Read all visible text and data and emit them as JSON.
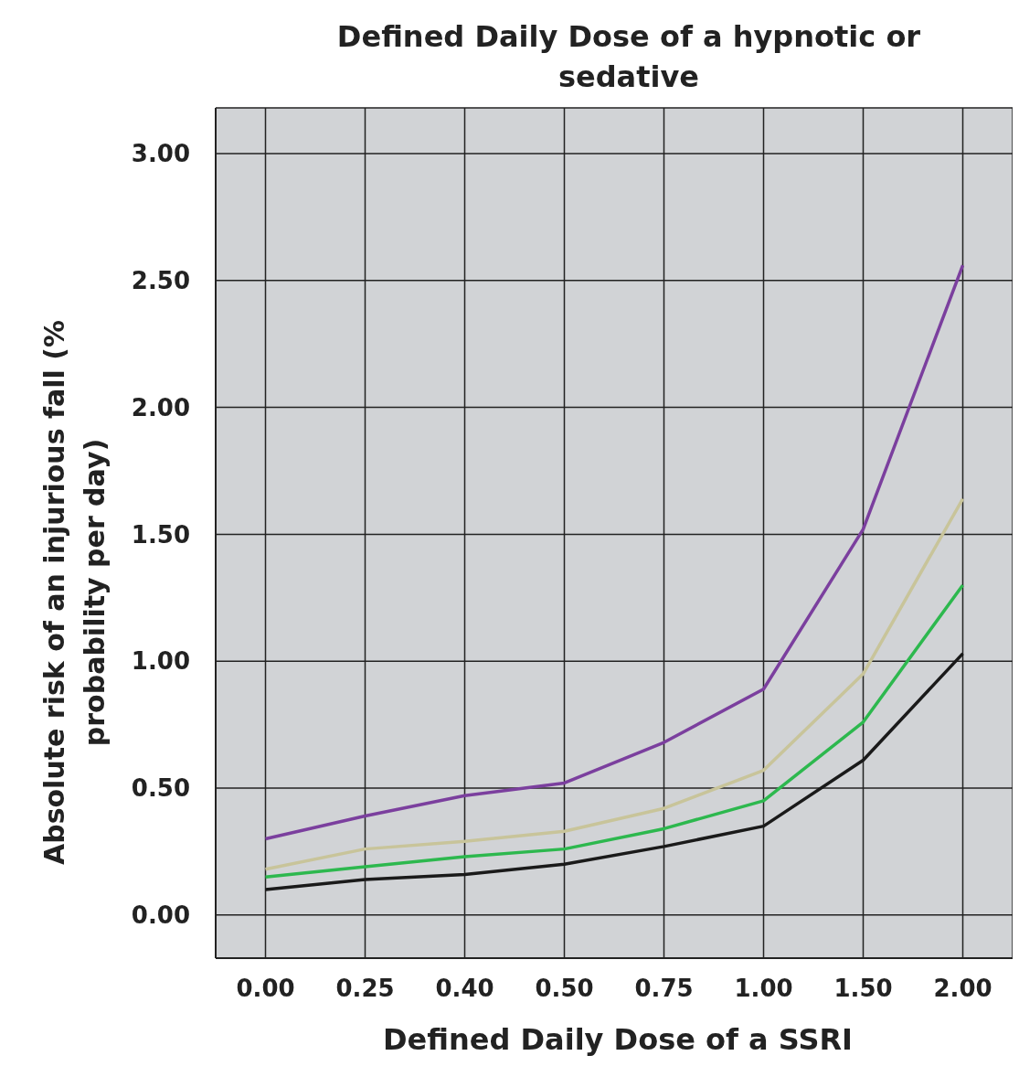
{
  "chart_data": {
    "type": "line",
    "title": "Defined Daily Dose of a hypnotic or sedative",
    "xlabel": "Defined Daily Dose of a SSRI",
    "ylabel": "Absolute risk of an injurious fall (% probability per day)",
    "categories": [
      "0.00",
      "0.25",
      "0.40",
      "0.50",
      "0.75",
      "1.00",
      "1.50",
      "2.00"
    ],
    "series": [
      {
        "color": "#7b3f9e",
        "values": [
          0.3,
          0.39,
          0.47,
          0.52,
          0.68,
          0.89,
          1.52,
          2.56
        ]
      },
      {
        "color": "#c8c49a",
        "values": [
          0.18,
          0.26,
          0.29,
          0.33,
          0.42,
          0.57,
          0.95,
          1.64
        ]
      },
      {
        "color": "#2db84e",
        "values": [
          0.15,
          0.19,
          0.23,
          0.26,
          0.34,
          0.45,
          0.76,
          1.3
        ]
      },
      {
        "color": "#1a1a1a",
        "values": [
          0.1,
          0.14,
          0.16,
          0.2,
          0.27,
          0.35,
          0.61,
          1.03
        ]
      }
    ],
    "ylim": [
      -0.17,
      3.18
    ],
    "yticks": [
      {
        "value": 0,
        "label": "0.00"
      },
      {
        "value": 0.5,
        "label": "0.50"
      },
      {
        "value": 1,
        "label": "1.00"
      },
      {
        "value": 1.5,
        "label": "1.50"
      },
      {
        "value": 2,
        "label": "2.00"
      },
      {
        "value": 2.5,
        "label": "2.50"
      },
      {
        "value": 3,
        "label": "3.00"
      }
    ],
    "grid": true,
    "marker": "none",
    "line_style": "solid",
    "legend": false
  }
}
